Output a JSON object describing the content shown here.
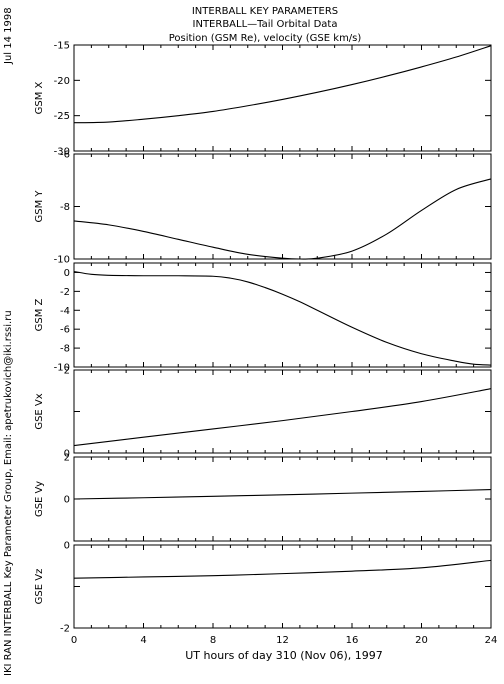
{
  "header": {
    "line1": "INTERBALL KEY PARAMETERS",
    "line2": "INTERBALL—Tail Orbital Data",
    "line3": "Position (GSM Re), velocity (GSE km/s)"
  },
  "side_text": {
    "date": "Jul 14 1998",
    "credit": "IKI RAN INTERBALL Key Parameter Group, Email: apetrukovich@iki.rssi.ru"
  },
  "chart_data": {
    "type": "line",
    "xlabel": "UT hours of day 310 (Nov 06), 1997",
    "xlim": [
      0,
      24
    ],
    "xticks": [
      0,
      4,
      8,
      12,
      16,
      20,
      24
    ],
    "panels": [
      {
        "ylabel": "GSM X",
        "ylim": [
          -30,
          -15
        ],
        "yticks": [
          -30,
          -25,
          -20,
          -15
        ],
        "yticklabels": [
          "-30",
          "-25",
          "-20",
          "-15"
        ],
        "x": [
          0,
          2,
          4,
          6,
          8,
          10,
          12,
          14,
          16,
          18,
          20,
          22,
          24
        ],
        "y": [
          -26.0,
          -25.9,
          -25.5,
          -25.0,
          -24.4,
          -23.6,
          -22.7,
          -21.7,
          -20.6,
          -19.4,
          -18.1,
          -16.7,
          -15.1
        ]
      },
      {
        "ylabel": "GSM Y",
        "ylim": [
          -10,
          -6
        ],
        "yticks": [
          -10,
          -8,
          -6
        ],
        "yticklabels": [
          "-10",
          "-8",
          "-6"
        ],
        "x": [
          0,
          2,
          4,
          6,
          8,
          10,
          12,
          13,
          14,
          16,
          18,
          20,
          22,
          24
        ],
        "y": [
          -8.55,
          -8.7,
          -8.95,
          -9.25,
          -9.55,
          -9.82,
          -9.97,
          -10.0,
          -9.97,
          -9.7,
          -9.05,
          -8.15,
          -7.35,
          -6.95
        ]
      },
      {
        "ylabel": "GSM Z",
        "ylim": [
          -10,
          1
        ],
        "yticks": [
          -10,
          -8,
          -6,
          -4,
          -2,
          0
        ],
        "yticklabels": [
          "-10",
          "-8",
          "-6",
          "-4",
          "-2",
          "0"
        ],
        "x": [
          0,
          1,
          2,
          4,
          6,
          8,
          9,
          10,
          11,
          12,
          13,
          14,
          16,
          18,
          20,
          22,
          23,
          24
        ],
        "y": [
          0.1,
          -0.2,
          -0.3,
          -0.35,
          -0.35,
          -0.4,
          -0.6,
          -1.0,
          -1.6,
          -2.3,
          -3.1,
          -4.0,
          -5.8,
          -7.4,
          -8.6,
          -9.4,
          -9.7,
          -9.8
        ]
      },
      {
        "ylabel": "GSE Vx",
        "ylim": [
          0,
          2
        ],
        "yticks": [
          0,
          1,
          2
        ],
        "yticklabels": [
          "0",
          "",
          "2"
        ],
        "x": [
          0,
          4,
          8,
          12,
          16,
          20,
          24
        ],
        "y": [
          0.18,
          0.38,
          0.58,
          0.78,
          1.0,
          1.24,
          1.55
        ]
      },
      {
        "ylabel": "GSE Vy",
        "ylim": [
          -2,
          2
        ],
        "yticks": [
          -2,
          0,
          2
        ],
        "yticklabels": [
          "",
          "0",
          "2"
        ],
        "x": [
          0,
          4,
          8,
          12,
          16,
          20,
          24
        ],
        "y": [
          0.0,
          0.06,
          0.13,
          0.2,
          0.28,
          0.36,
          0.45
        ]
      },
      {
        "ylabel": "GSE Vz",
        "ylim": [
          -2,
          0
        ],
        "yticks": [
          -2,
          -1,
          0
        ],
        "yticklabels": [
          "-2",
          "",
          "0"
        ],
        "x": [
          0,
          4,
          8,
          12,
          16,
          20,
          24
        ],
        "y": [
          -0.8,
          -0.77,
          -0.74,
          -0.69,
          -0.63,
          -0.55,
          -0.37
        ]
      }
    ]
  }
}
